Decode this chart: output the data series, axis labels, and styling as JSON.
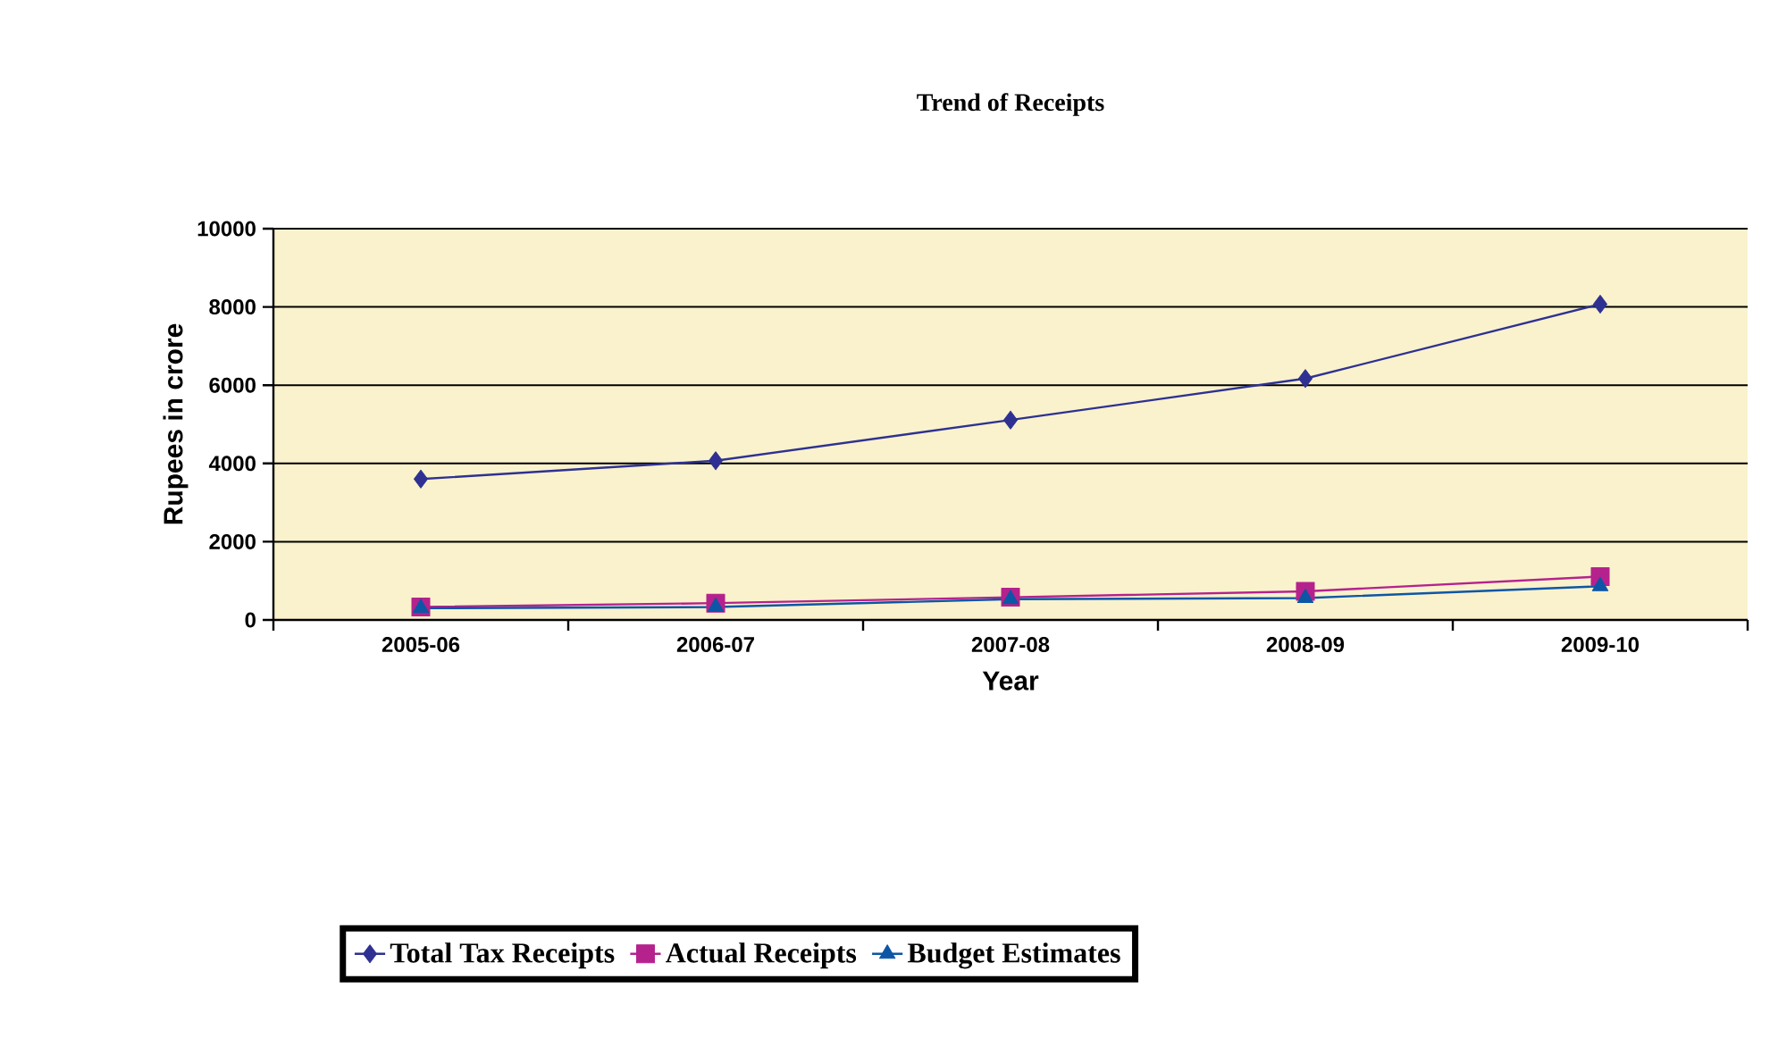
{
  "chart_data": {
    "type": "line",
    "title": "Trend of Receipts",
    "xlabel": "Year",
    "ylabel": "Rupees in crore",
    "categories": [
      "2005-06",
      "2006-07",
      "2007-08",
      "2008-09",
      "2009-10"
    ],
    "series": [
      {
        "name": "Total Tax Receipts",
        "color": "#2e3192",
        "marker": "diamond",
        "values": [
          3600,
          4070,
          5110,
          6170,
          8070
        ]
      },
      {
        "name": "Actual Receipts",
        "color": "#b5228d",
        "marker": "square",
        "values": [
          330,
          430,
          580,
          730,
          1110
        ]
      },
      {
        "name": "Budget Estimates",
        "color": "#0d56a6",
        "marker": "triangle",
        "values": [
          300,
          330,
          530,
          560,
          860
        ]
      }
    ],
    "ylim": [
      0,
      10000
    ],
    "yticks": [
      0,
      2000,
      4000,
      6000,
      8000,
      10000
    ],
    "grid": "y",
    "legend": "bottom"
  }
}
